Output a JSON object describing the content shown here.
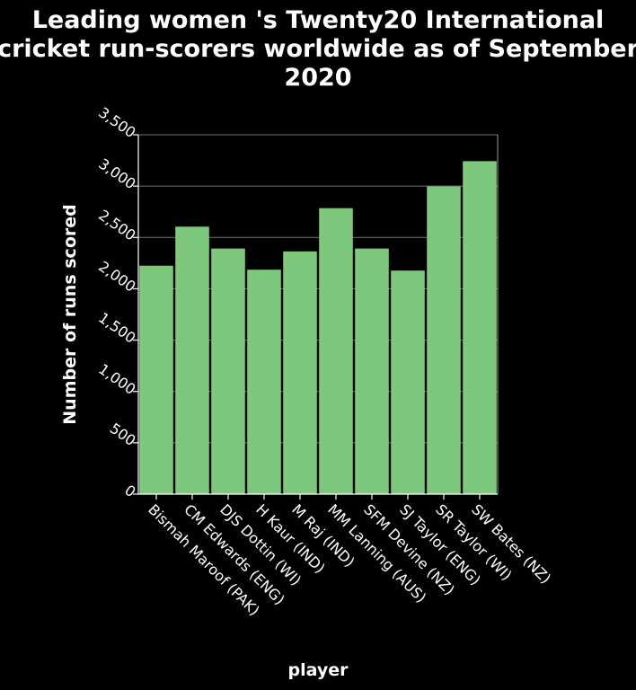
{
  "chart_data": {
    "type": "bar",
    "title_lines": [
      "Leading women 's Twenty20 International",
      "cricket run-scorers worldwide as of September",
      "2020"
    ],
    "xlabel": "player",
    "ylabel": "Number of runs scored",
    "categories": [
      "Bismah Maroof (PAK)",
      "CM Edwards (ENG)",
      "DJS Dottin (WI)",
      "H Kaur (IND)",
      "M Raj (IND)",
      "MM Lanning (AUS)",
      "SFM Devine (NZ)",
      "SJ Taylor (ENG)",
      "SR Taylor (WI)",
      "SW Bates (NZ)"
    ],
    "values": [
      2225,
      2605,
      2392,
      2186,
      2364,
      2785,
      2392,
      2177,
      2997,
      3243
    ],
    "ylim": [
      0,
      3500
    ],
    "yticks": [
      0,
      500,
      1000,
      1500,
      2000,
      2500,
      3000,
      3500
    ],
    "ytick_labels": [
      "0",
      "500",
      "1,000",
      "1,500",
      "2,000",
      "2,500",
      "3,000",
      "3,500"
    ],
    "grid": true,
    "colors": {
      "background": "#000000",
      "bar": "#7ec87e",
      "text": "#ffffff",
      "grid": "#ffffff"
    }
  }
}
